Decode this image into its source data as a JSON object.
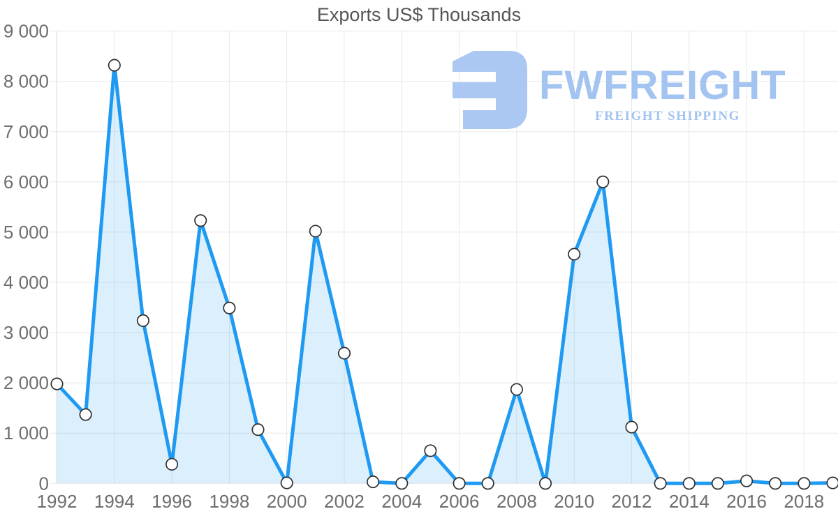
{
  "watermark": {
    "brand": "FWFREIGHT",
    "tagline": "FREIGHT SHIPPING"
  },
  "colors": {
    "line": "#1f9af2",
    "area_fill": "#ddecfb",
    "area_opacity": 0.16,
    "marker_fill": "#ffffff",
    "marker_stroke": "#2f2f2f",
    "grid": "#e8e8e8",
    "axis": "#d4d4d4",
    "tick_label": "#6e6e6e",
    "title": "#555555",
    "watermark_icon": "#abc8f2",
    "watermark_text": "#a3c4f0"
  },
  "chart_data": {
    "type": "area",
    "title": "Exports US$ Thousands",
    "xlabel": "",
    "ylabel": "",
    "legend": "none",
    "grid": true,
    "x": [
      1992,
      1993,
      1994,
      1995,
      1996,
      1997,
      1998,
      1999,
      2000,
      2001,
      2002,
      2003,
      2004,
      2005,
      2006,
      2007,
      2008,
      2009,
      2010,
      2011,
      2012,
      2013,
      2014,
      2015,
      2016,
      2017,
      2018,
      2019
    ],
    "values": [
      1980,
      1370,
      8320,
      3240,
      380,
      5230,
      3490,
      1070,
      10,
      5020,
      2590,
      30,
      0,
      650,
      0,
      0,
      1870,
      0,
      4560,
      6000,
      1120,
      0,
      0,
      0,
      50,
      0,
      0,
      10
    ],
    "xlim": [
      1992,
      2019
    ],
    "ylim": [
      0,
      9000
    ],
    "x_ticks": [
      1992,
      1994,
      1996,
      1998,
      2000,
      2002,
      2004,
      2006,
      2008,
      2010,
      2012,
      2014,
      2016,
      2018
    ],
    "x_tick_labels": [
      "1992",
      "1994",
      "1996",
      "1998",
      "2000",
      "2002",
      "2004",
      "2006",
      "2008",
      "2010",
      "2012",
      "2014",
      "2016",
      "2018"
    ],
    "y_ticks": [
      0,
      1000,
      2000,
      3000,
      4000,
      5000,
      6000,
      7000,
      8000,
      9000
    ],
    "y_tick_labels": [
      "0",
      "1 000",
      "2 000",
      "3 000",
      "4 000",
      "5 000",
      "6 000",
      "7 000",
      "8 000",
      "9 000"
    ]
  }
}
